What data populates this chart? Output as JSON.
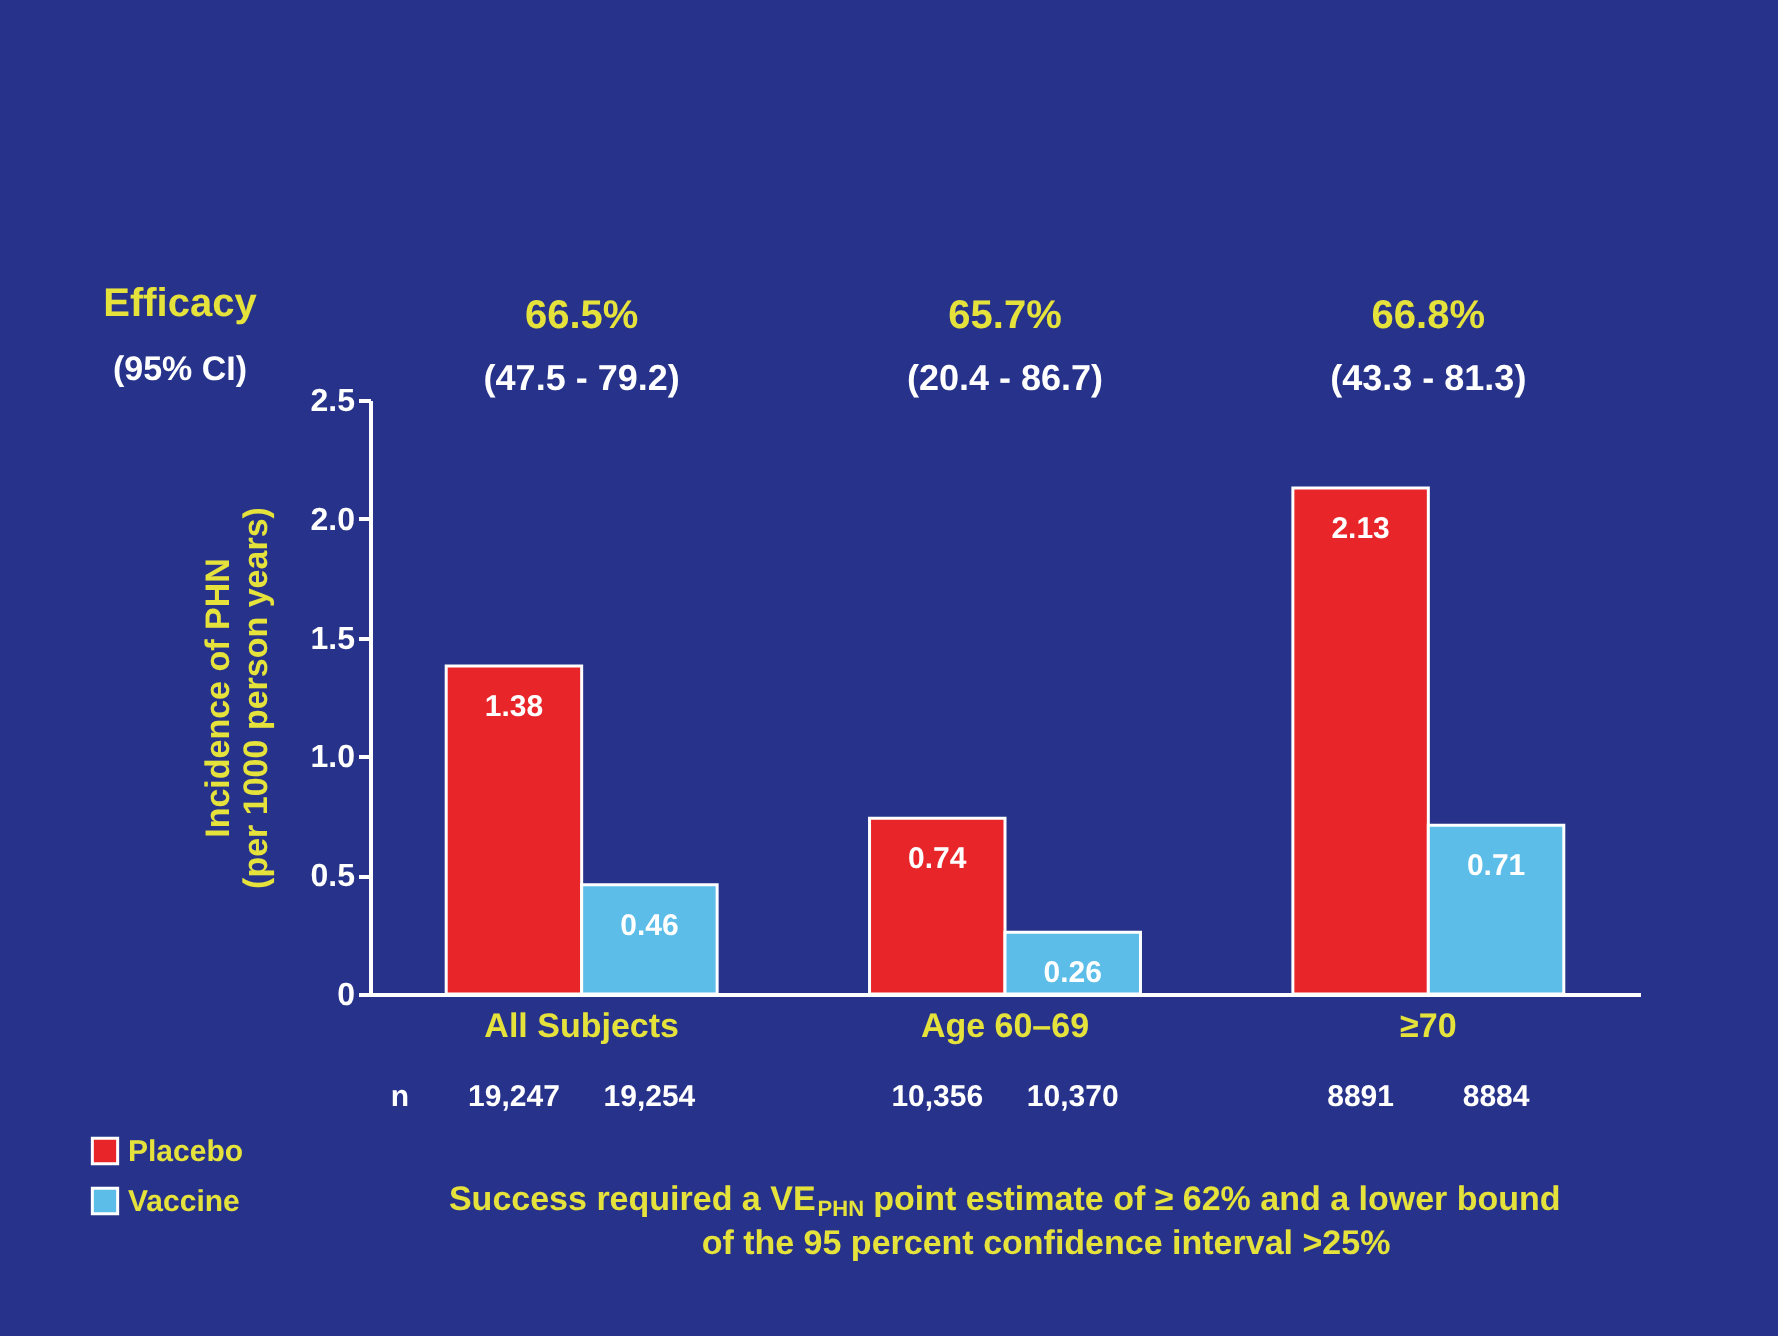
{
  "chart_data": {
    "type": "bar",
    "categories": [
      "All Subjects",
      "Age 60–69",
      "≥70"
    ],
    "series": [
      {
        "name": "Placebo",
        "color": "#e8262a",
        "values": [
          1.38,
          0.74,
          2.13
        ]
      },
      {
        "name": "Vaccine",
        "color": "#5bbde8",
        "values": [
          0.46,
          0.26,
          0.71
        ]
      }
    ],
    "ylabel": "Incidence of PHN\n(per 1000 person years)",
    "ylim": [
      0,
      2.5
    ],
    "yticks": [
      0,
      {
        "value": 0.5,
        "label": "0.5"
      },
      {
        "value": 1,
        "label": "1.0"
      },
      {
        "value": 1.5,
        "label": "1.5"
      },
      {
        "value": 2,
        "label": "2.0"
      },
      {
        "value": 2.5,
        "label": "2.5"
      }
    ],
    "data_labels": true,
    "grid": false,
    "legend": "bottom left",
    "annotations": [
      "Efficacy",
      "(95% CI)",
      "66.5%",
      "(47.5 - 79.2)",
      "65.7%",
      "(20.4 - 86.7)",
      "66.8%",
      "(43.3 - 81.3)",
      "n",
      "19,247",
      "19,254",
      "10,356",
      "10,370",
      "8891",
      "8884",
      "Success required a VE$_{PHN}$ point estimate of  ≥ 62% and a lower bound",
      "of the  95 percent confidence interval >25%"
    ]
  }
}
